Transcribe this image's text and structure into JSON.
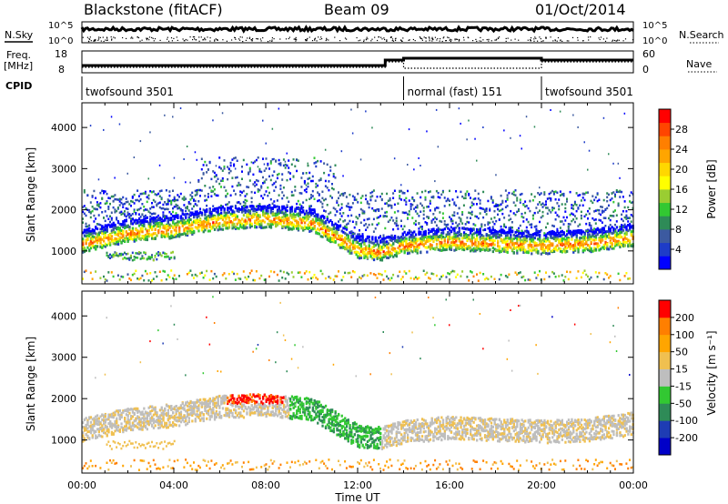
{
  "header": {
    "radar": "Blackstone (fitACF)",
    "beam": "Beam 09",
    "date": "01/Oct/2014"
  },
  "labels": {
    "nsky": "N.Sky",
    "nsearch": "N.Search",
    "freq_line1": "Freq.",
    "freq_line2": "[MHz]",
    "nave": "Nave",
    "cpid": "CPID"
  },
  "noise_panel": {
    "left_ticks": [
      "10^5",
      "10^0"
    ],
    "right_ticks": [
      "10^5",
      "10^0"
    ]
  },
  "freq_panel": {
    "left_ticks": [
      "18",
      "8"
    ],
    "right_ticks": [
      "60",
      "0"
    ]
  },
  "cpid_segments": [
    {
      "label": "twofsound 3501",
      "start_hr": 0,
      "end_hr": 14
    },
    {
      "label": "normal (fast) 151",
      "start_hr": 14,
      "end_hr": 20
    },
    {
      "label": "twofsound 3501",
      "start_hr": 20,
      "end_hr": 24
    }
  ],
  "colorbars": {
    "power": {
      "label": "Power [dB]",
      "ticks": [
        "28",
        "24",
        "20",
        "16",
        "12",
        "8",
        "4"
      ],
      "colors": [
        "#0000ff",
        "#1e3cc8",
        "#3c5aa0",
        "#2e8b57",
        "#32c832",
        "#9acd32",
        "#ffff00",
        "#ffd700",
        "#ffa500",
        "#ff7f00",
        "#ff4500",
        "#ff0000"
      ]
    },
    "velocity": {
      "label": "Velocity [m s⁻¹]",
      "ticks": [
        "200",
        "100",
        "50",
        "15",
        "-15",
        "-50",
        "-100",
        "-200"
      ],
      "colors": [
        "#0000c8",
        "#1e3cb4",
        "#2e8b57",
        "#32c832",
        "#bebebe",
        "#f0c050",
        "#ffa500",
        "#ff7f00",
        "#ff0000"
      ]
    }
  },
  "chart_data": [
    {
      "type": "heatmap",
      "name": "power",
      "ylabel": "Slant Range [km]",
      "yticks": [
        "1000",
        "2000",
        "3000",
        "4000"
      ],
      "xlim": [
        0,
        24
      ],
      "ylim": [
        200,
        4600
      ],
      "main_band_range_km": [
        [
          0,
          1200
        ],
        [
          2,
          1450
        ],
        [
          4,
          1550
        ],
        [
          6,
          1750
        ],
        [
          8,
          1800
        ],
        [
          10,
          1700
        ],
        [
          12,
          1050
        ],
        [
          13,
          1000
        ],
        [
          14,
          1150
        ],
        [
          16,
          1250
        ],
        [
          18,
          1200
        ],
        [
          20,
          1150
        ],
        [
          22,
          1200
        ],
        [
          24,
          1350
        ]
      ]
    },
    {
      "type": "heatmap",
      "name": "velocity",
      "ylabel": "Slant Range [km]",
      "yticks": [
        "1000",
        "2000",
        "3000",
        "4000"
      ],
      "xlim": [
        0,
        24
      ],
      "ylim": [
        200,
        4600
      ]
    }
  ],
  "xaxis": {
    "label": "Time UT",
    "ticks": [
      "00:00",
      "04:00",
      "08:00",
      "12:00",
      "16:00",
      "20:00",
      "00:00"
    ]
  }
}
